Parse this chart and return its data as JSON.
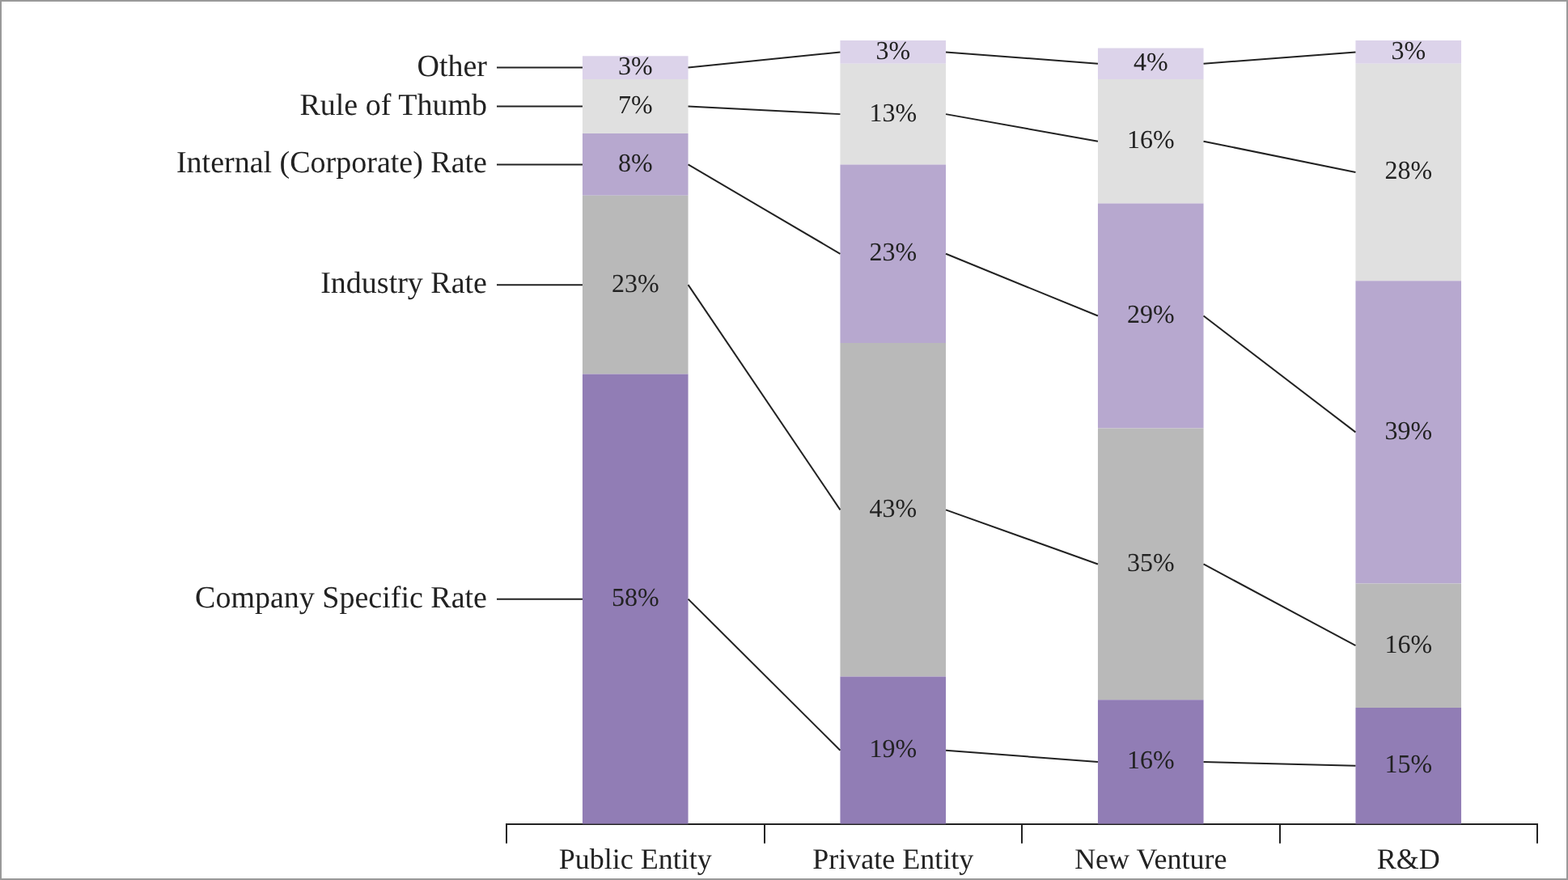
{
  "chart_data": {
    "type": "bar",
    "stacked": true,
    "categories": [
      "Public Entity",
      "Private Entity",
      "New Venture",
      "R&D"
    ],
    "series": [
      {
        "name": "Company Specific Rate",
        "color": "#917db5",
        "values": [
          58,
          19,
          16,
          15
        ],
        "value_labels": [
          "58%",
          "19%",
          "16%",
          "15%"
        ]
      },
      {
        "name": "Industry Rate",
        "color": "#b9b9b9",
        "values": [
          23,
          43,
          35,
          16
        ],
        "value_labels": [
          "23%",
          "43%",
          "35%",
          "16%"
        ]
      },
      {
        "name": "Internal (Corporate) Rate",
        "color": "#b7a8cf",
        "values": [
          8,
          23,
          29,
          39
        ],
        "value_labels": [
          "8%",
          "23%",
          "29%",
          "39%"
        ]
      },
      {
        "name": "Rule of Thumb",
        "color": "#e0e0e0",
        "values": [
          7,
          13,
          16,
          28
        ],
        "value_labels": [
          "7%",
          "13%",
          "16%",
          "28%"
        ]
      },
      {
        "name": "Other",
        "color": "#dcd3ea",
        "values": [
          3,
          3,
          4,
          3
        ],
        "value_labels": [
          "3%",
          "3%",
          "4%",
          "3%"
        ]
      }
    ],
    "tick_labels": "x",
    "grid": false,
    "legend": false
  }
}
